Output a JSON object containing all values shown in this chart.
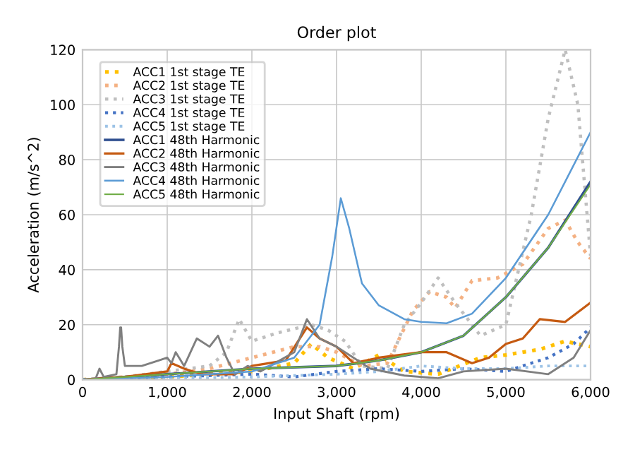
{
  "chart_data": {
    "type": "line",
    "title": "Order plot",
    "xlabel": "Input Shaft (rpm)",
    "ylabel": "Acceleration (m/s^2)",
    "xlim": [
      0,
      6000
    ],
    "ylim": [
      0,
      120
    ],
    "xticks": [
      {
        "value": 0,
        "label": "0"
      },
      {
        "value": 1000,
        "label": "1,000"
      },
      {
        "value": 2000,
        "label": "2,000"
      },
      {
        "value": 3000,
        "label": "3,000"
      },
      {
        "value": 4000,
        "label": "4,000"
      },
      {
        "value": 5000,
        "label": "5,000"
      },
      {
        "value": 6000,
        "label": "6,000"
      }
    ],
    "yticks": [
      0,
      20,
      40,
      60,
      80,
      100,
      120
    ],
    "grid": true,
    "legend": "top left",
    "marker": "none",
    "series": [
      {
        "name": "ACC1 1st stage TE",
        "color": "#ffc000",
        "line_style": "dotted",
        "x": [
          0,
          1000,
          2000,
          2500,
          2700,
          2900,
          3200,
          3500,
          3800,
          4200,
          4700,
          5000,
          5400,
          5700,
          6000
        ],
        "values": [
          0,
          1,
          3,
          6,
          13,
          8,
          4,
          9,
          3,
          2,
          8,
          9,
          11,
          14,
          12
        ]
      },
      {
        "name": "ACC2 1st stage TE",
        "color": "#f4b183",
        "line_style": "dotted",
        "x": [
          0,
          1000,
          1500,
          2000,
          2500,
          2800,
          3000,
          3300,
          3600,
          3900,
          4100,
          4300,
          4400,
          4600,
          4900,
          5200,
          5500,
          5700,
          5850,
          6000
        ],
        "values": [
          0,
          2,
          4,
          8,
          12,
          12,
          10,
          5,
          6,
          25,
          32,
          30,
          26,
          36,
          37,
          42,
          55,
          58,
          50,
          44
        ]
      },
      {
        "name": "ACC3 1st stage TE",
        "color": "#bfbfbf",
        "line_style": "dotted",
        "x": [
          0,
          500,
          1000,
          1500,
          1700,
          1850,
          2000,
          2300,
          2700,
          2900,
          3100,
          3300,
          3600,
          3800,
          4000,
          4200,
          4400,
          4700,
          5000,
          5300,
          5500,
          5700,
          5850,
          6000
        ],
        "values": [
          0,
          1,
          3,
          5,
          10,
          22,
          14,
          17,
          20,
          18,
          14,
          5,
          4,
          20,
          28,
          37,
          28,
          16,
          20,
          60,
          95,
          120,
          100,
          45
        ]
      },
      {
        "name": "ACC4 1st stage TE",
        "color": "#4472c4",
        "line_style": "dotted",
        "x": [
          0,
          1000,
          2000,
          2500,
          3000,
          3500,
          4000,
          4500,
          5000,
          5500,
          5800,
          6000
        ],
        "values": [
          0,
          1,
          2,
          1,
          3,
          4,
          3,
          4,
          3,
          8,
          13,
          19
        ]
      },
      {
        "name": "ACC5 1st stage TE",
        "color": "#9dc3e6",
        "line_style": "dotted",
        "x": [
          0,
          2000,
          3000,
          3500,
          4000,
          4500,
          5000,
          5500,
          6000
        ],
        "values": [
          0,
          1,
          2,
          3,
          5,
          4,
          4,
          5,
          5
        ]
      },
      {
        "name": "ACC1 48th Harmonic",
        "color": "#2f4f8f",
        "line_style": "solid",
        "x": [
          0,
          1000,
          2000,
          3000,
          3500,
          4000,
          4500,
          5000,
          5500,
          6000
        ],
        "values": [
          0,
          2,
          4,
          5,
          7,
          10,
          16,
          30,
          48,
          72
        ]
      },
      {
        "name": "ACC2 48th Harmonic",
        "color": "#c55a11",
        "line_style": "solid",
        "x": [
          0,
          500,
          1000,
          1050,
          1200,
          1400,
          1800,
          2000,
          2400,
          2650,
          2800,
          3000,
          3200,
          3500,
          4000,
          4300,
          4600,
          4800,
          5000,
          5200,
          5400,
          5700,
          6000
        ],
        "values": [
          0,
          1,
          3,
          6,
          4,
          2,
          2,
          5,
          7,
          19,
          15,
          12,
          6,
          8,
          10,
          10,
          6,
          8,
          13,
          15,
          22,
          21,
          28
        ]
      },
      {
        "name": "ACC3 48th Harmonic",
        "color": "#7f7f7f",
        "line_style": "solid",
        "x": [
          0,
          150,
          200,
          250,
          400,
          430,
          445,
          455,
          470,
          500,
          700,
          900,
          1000,
          1050,
          1100,
          1200,
          1350,
          1500,
          1600,
          1700,
          1800,
          1950,
          2100,
          2500,
          2650,
          2800,
          3000,
          3100,
          3400,
          3800,
          4200,
          4500,
          5000,
          5500,
          5800,
          6000
        ],
        "values": [
          0,
          0,
          4,
          1,
          2,
          12,
          19,
          19,
          12,
          5,
          5,
          7,
          8,
          6,
          10,
          5,
          15,
          12,
          16,
          8,
          2,
          5,
          3,
          10,
          22,
          15,
          12,
          10,
          4,
          1.5,
          0.5,
          3,
          4,
          2,
          8,
          18
        ]
      },
      {
        "name": "ACC4 48th Harmonic",
        "color": "#5b9bd5",
        "line_style": "solid",
        "x": [
          0,
          1000,
          2000,
          2500,
          2800,
          2950,
          3050,
          3150,
          3300,
          3500,
          3800,
          4000,
          4300,
          4600,
          5000,
          5500,
          6000
        ],
        "values": [
          0,
          1,
          3,
          8,
          20,
          45,
          66,
          55,
          35,
          27,
          22,
          21,
          20.5,
          24,
          37,
          60,
          90
        ]
      },
      {
        "name": "ACC5 48th Harmonic",
        "color": "#70ad47",
        "line_style": "solid",
        "x": [
          0,
          1000,
          2000,
          3000,
          3500,
          4000,
          4500,
          5000,
          5500,
          6000
        ],
        "values": [
          0,
          2,
          4,
          5,
          7,
          10,
          16,
          30,
          48,
          71
        ]
      }
    ]
  }
}
